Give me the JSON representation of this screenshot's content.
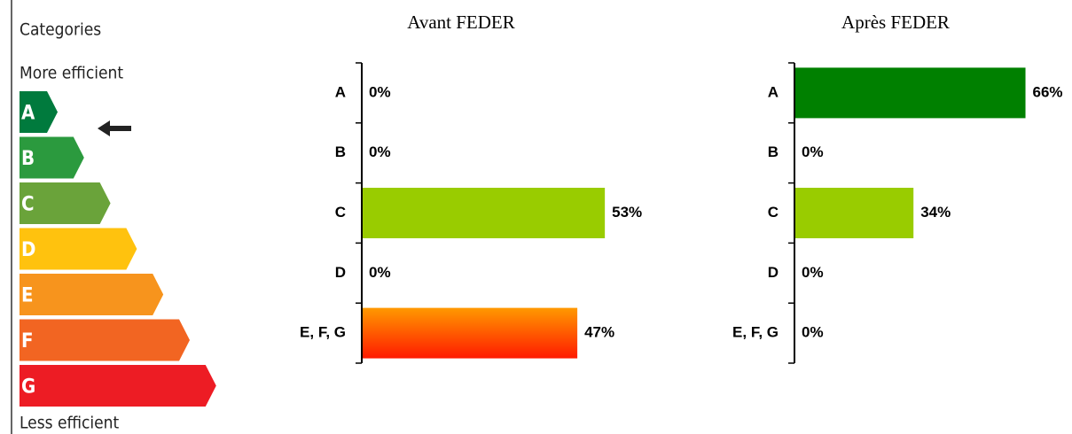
{
  "scale": {
    "title": "Categories",
    "top": "More efficient",
    "bottom": "Less efficient",
    "classes": [
      "A",
      "B",
      "C",
      "D",
      "E",
      "F",
      "G"
    ],
    "colors": [
      "#007a3d",
      "#2b9a3e",
      "#6aa33a",
      "#ffc20e",
      "#f7941d",
      "#f26522",
      "#ed1c24"
    ]
  },
  "chart_data": [
    {
      "type": "hbar",
      "title": "Avant FEDER",
      "categories": [
        "A",
        "B",
        "C",
        "D",
        "E, F, G"
      ],
      "values": [
        0,
        0,
        53,
        0,
        47
      ],
      "value_labels": [
        "0%",
        "0%",
        "53%",
        "0%",
        "47%"
      ],
      "colors": [
        "#008000",
        "#008000",
        "#99cc00",
        "#99cc00",
        [
          "#ff9900",
          "#ff1a00"
        ]
      ],
      "xlim": [
        0,
        58
      ]
    },
    {
      "type": "hbar",
      "title": "Après FEDER",
      "categories": [
        "A",
        "B",
        "C",
        "D",
        "E, F, G"
      ],
      "values": [
        66,
        0,
        34,
        0,
        0
      ],
      "value_labels": [
        "66%",
        "0%",
        "34%",
        "0%",
        "0%"
      ],
      "colors": [
        "#008000",
        "#008000",
        "#99cc00",
        "#99cc00",
        [
          "#ff9900",
          "#ff1a00"
        ]
      ],
      "xlim": [
        0,
        76
      ]
    }
  ]
}
